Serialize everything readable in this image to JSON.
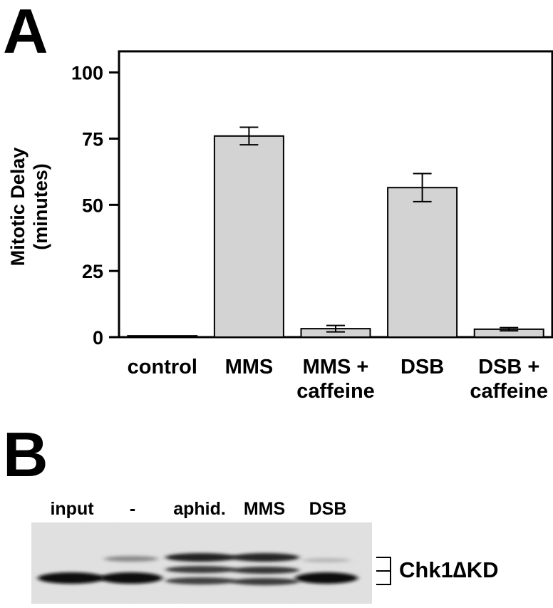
{
  "panel_a": {
    "letter": "A",
    "chart_data": {
      "type": "bar",
      "categories": [
        "control",
        "MMS",
        "MMS +\ncaffeine",
        "DSB",
        "DSB +\ncaffeine"
      ],
      "values": [
        0.5,
        76,
        3.2,
        56.5,
        3.0
      ],
      "errors": [
        0,
        3.3,
        1.2,
        5.3,
        0.6
      ],
      "title": "",
      "xlabel": "",
      "ylabel": "Mitotic Delay\n(minutes)",
      "ylim": [
        0,
        108
      ],
      "yticks": [
        0,
        25,
        50,
        75,
        100
      ],
      "grid": false,
      "legend": "none",
      "bar_color": "#d3d3d3",
      "edge_color": "#000000"
    }
  },
  "panel_b": {
    "letter": "B",
    "lanes": [
      "input",
      "-",
      "aphid.",
      "MMS",
      "DSB"
    ],
    "band_label": "Chk1∆KD"
  }
}
